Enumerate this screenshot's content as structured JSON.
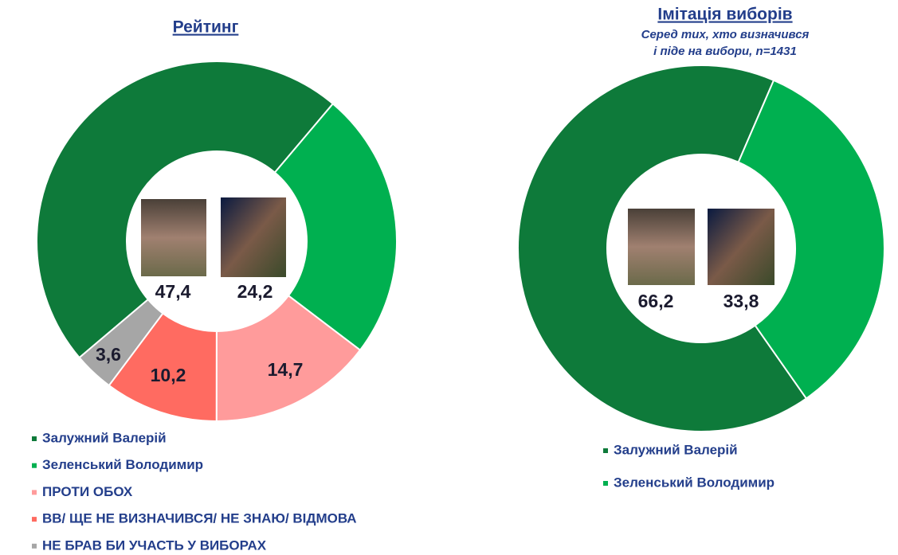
{
  "chart_data": [
    {
      "type": "pie",
      "title": "Рейтинг",
      "categories": [
        "Залужний Валерій",
        "Зеленський Володимир",
        "ПРОТИ ОБОХ",
        "ВВ/ ЩЕ НЕ ВИЗНАЧИВСЯ/ НЕ ЗНАЮ/ ВІДМОВА",
        "НЕ БРАВ БИ УЧАСТЬ У ВИБОРАХ"
      ],
      "values": [
        47.4,
        24.2,
        14.7,
        10.2,
        3.6
      ],
      "value_labels": [
        "47,4",
        "24,2",
        "14,7",
        "10,2",
        "3,6"
      ],
      "colors": [
        "#0e7a3a",
        "#00b050",
        "#ff9b9b",
        "#ff6b61",
        "#a6a6a6"
      ]
    },
    {
      "type": "pie",
      "title": "Імітація виборів",
      "subtitle": [
        "Серед тих, хто визначився",
        "і піде на вибори, n=1431"
      ],
      "categories": [
        "Залужний Валерій",
        "Зеленський Володимир"
      ],
      "values": [
        66.2,
        33.8
      ],
      "value_labels": [
        "66,2",
        "33,8"
      ],
      "colors": [
        "#0e7a3a",
        "#00b050"
      ]
    }
  ]
}
